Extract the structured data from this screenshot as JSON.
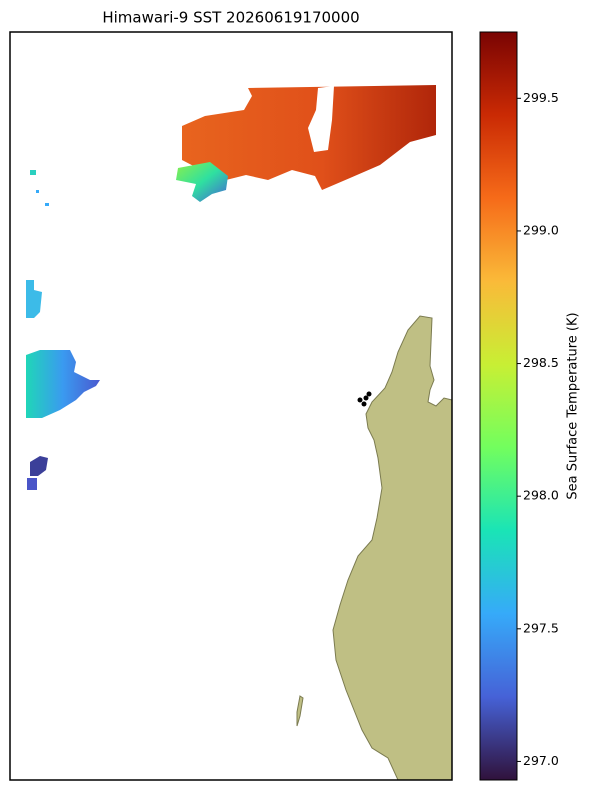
{
  "chart_data": {
    "type": "map",
    "title": "Himawari-9 SST 20260619170000",
    "colorbar_label": "Sea Surface Temperature (K)",
    "clim": [
      296.93,
      299.75
    ],
    "cticks": [
      {
        "value": 297,
        "label": "297.0"
      },
      {
        "value": 297.5,
        "label": "297.5"
      },
      {
        "value": 298,
        "label": "298.0"
      },
      {
        "value": 298.5,
        "label": "298.5"
      },
      {
        "value": 299,
        "label": "299.0"
      },
      {
        "value": 299.5,
        "label": "299.5"
      }
    ],
    "colormap": [
      "#30123b",
      "#4662d7",
      "#36aaf9",
      "#1ae4b6",
      "#72fe5e",
      "#c8ef34",
      "#faba39",
      "#f66b19",
      "#ca2a04",
      "#7a0403"
    ]
  }
}
